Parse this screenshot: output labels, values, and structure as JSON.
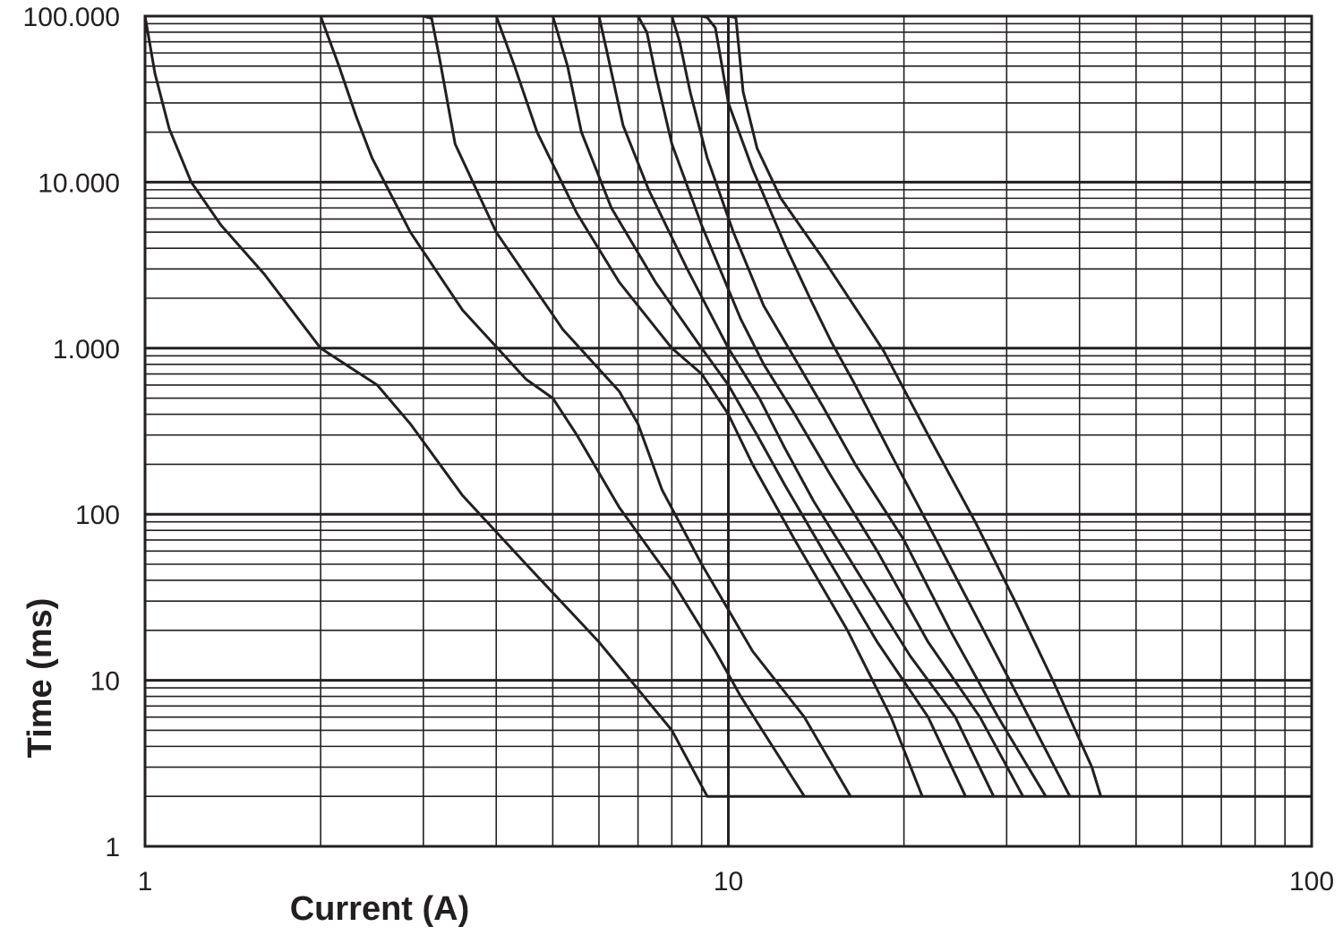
{
  "chart_data": {
    "type": "line",
    "title": "",
    "xlabel": "Current (A)",
    "ylabel": "Time (ms)",
    "x_scale": "log",
    "y_scale": "log",
    "xlim": [
      1,
      100
    ],
    "ylim": [
      1,
      100000
    ],
    "x_tick_labels": [
      {
        "value": 1,
        "label": "1"
      },
      {
        "value": 10,
        "label": "10"
      },
      {
        "value": 100,
        "label": "100"
      }
    ],
    "y_tick_labels": [
      {
        "value": 1,
        "label": "1"
      },
      {
        "value": 10,
        "label": "10"
      },
      {
        "value": 100,
        "label": "100"
      },
      {
        "value": 1000,
        "label": "1.000"
      },
      {
        "value": 10000,
        "label": "10.000"
      },
      {
        "value": 100000,
        "label": "100.000"
      }
    ],
    "grid": true,
    "legend": "none",
    "line_color": "#231f20",
    "series": [
      {
        "points": [
          [
            1,
            100000
          ],
          [
            1.04,
            45000
          ],
          [
            1.1,
            21000
          ],
          [
            1.2,
            10000
          ],
          [
            1.35,
            5500
          ],
          [
            1.6,
            2800
          ],
          [
            2,
            1000
          ],
          [
            2.5,
            600
          ],
          [
            2.85,
            350
          ],
          [
            3.5,
            130
          ],
          [
            4.5,
            50
          ],
          [
            6,
            17
          ],
          [
            8,
            5
          ],
          [
            9.2,
            2
          ],
          [
            100,
            2
          ]
        ]
      },
      {
        "points": [
          [
            2,
            100000
          ],
          [
            2.15,
            50000
          ],
          [
            2.3,
            25000
          ],
          [
            2.45,
            14000
          ],
          [
            2.85,
            5000
          ],
          [
            3.5,
            1700
          ],
          [
            4.5,
            650
          ],
          [
            5.0,
            500
          ],
          [
            5.5,
            300
          ],
          [
            6.5,
            110
          ],
          [
            8,
            40
          ],
          [
            9.5,
            15
          ],
          [
            10.5,
            8
          ],
          [
            13.5,
            2
          ]
        ]
      },
      {
        "points": [
          [
            3.0,
            100000
          ],
          [
            3.1,
            97000
          ],
          [
            3.2,
            55000
          ],
          [
            3.4,
            17000
          ],
          [
            4,
            5000
          ],
          [
            5.2,
            1300
          ],
          [
            6.5,
            550
          ],
          [
            7,
            350
          ],
          [
            7.7,
            140
          ],
          [
            9,
            50
          ],
          [
            11,
            15
          ],
          [
            13.5,
            6
          ],
          [
            16.2,
            2
          ]
        ]
      },
      {
        "points": [
          [
            4,
            100000
          ],
          [
            4.3,
            50000
          ],
          [
            4.7,
            20000
          ],
          [
            5.5,
            6500
          ],
          [
            6.5,
            2500
          ],
          [
            8,
            1000
          ],
          [
            9,
            700
          ],
          [
            10,
            400
          ],
          [
            11,
            200
          ],
          [
            13,
            70
          ],
          [
            16,
            20
          ],
          [
            19,
            6
          ],
          [
            21.5,
            2
          ]
        ]
      },
      {
        "points": [
          [
            5,
            100000
          ],
          [
            5.3,
            50000
          ],
          [
            5.6,
            20000
          ],
          [
            6.3,
            7000
          ],
          [
            7.5,
            2500
          ],
          [
            9,
            1000
          ],
          [
            10,
            600
          ],
          [
            11.2,
            300
          ],
          [
            12.5,
            150
          ],
          [
            15,
            50
          ],
          [
            18,
            17
          ],
          [
            22,
            6
          ],
          [
            25.5,
            2
          ]
        ]
      },
      {
        "points": [
          [
            6,
            100000
          ],
          [
            6.2,
            60000
          ],
          [
            6.6,
            22000
          ],
          [
            7.3,
            9000
          ],
          [
            8.5,
            3000
          ],
          [
            10,
            1000
          ],
          [
            11.3,
            500
          ],
          [
            12.5,
            250
          ],
          [
            14,
            120
          ],
          [
            17,
            40
          ],
          [
            20.5,
            14
          ],
          [
            24.5,
            6
          ],
          [
            28.5,
            2
          ]
        ]
      },
      {
        "points": [
          [
            7,
            100000
          ],
          [
            7.25,
            80000
          ],
          [
            7.5,
            45000
          ],
          [
            8,
            17000
          ],
          [
            9,
            5500
          ],
          [
            10.5,
            1500
          ],
          [
            11.5,
            800
          ],
          [
            13,
            400
          ],
          [
            15,
            170
          ],
          [
            18,
            60
          ],
          [
            22,
            17
          ],
          [
            27,
            6
          ],
          [
            32,
            2
          ]
        ]
      },
      {
        "points": [
          [
            8,
            100000
          ],
          [
            8.25,
            70000
          ],
          [
            8.6,
            35000
          ],
          [
            9.2,
            14000
          ],
          [
            10.2,
            5000
          ],
          [
            11.5,
            1800
          ],
          [
            12.8,
            950
          ],
          [
            14.5,
            450
          ],
          [
            16.5,
            200
          ],
          [
            20,
            70
          ],
          [
            24,
            20
          ],
          [
            29,
            6
          ],
          [
            35,
            2
          ]
        ]
      },
      {
        "points": [
          [
            9,
            100000
          ],
          [
            9.2,
            98000
          ],
          [
            9.5,
            85000
          ],
          [
            10,
            30000
          ],
          [
            11,
            12000
          ],
          [
            12.5,
            4200
          ],
          [
            13.8,
            2000
          ],
          [
            15,
            1100
          ],
          [
            16.5,
            600
          ],
          [
            19,
            230
          ],
          [
            22.5,
            75
          ],
          [
            27,
            22
          ],
          [
            32,
            7
          ],
          [
            38.5,
            2
          ]
        ]
      },
      {
        "points": [
          [
            10,
            100000
          ],
          [
            10.3,
            98000
          ],
          [
            10.6,
            35000
          ],
          [
            11.2,
            16000
          ],
          [
            12.3,
            8000
          ],
          [
            14.5,
            3500
          ],
          [
            17,
            1500
          ],
          [
            18.5,
            950
          ],
          [
            22,
            300
          ],
          [
            26.5,
            90
          ],
          [
            31,
            30
          ],
          [
            36,
            10
          ],
          [
            42,
            3
          ],
          [
            43.5,
            2
          ]
        ]
      }
    ]
  }
}
